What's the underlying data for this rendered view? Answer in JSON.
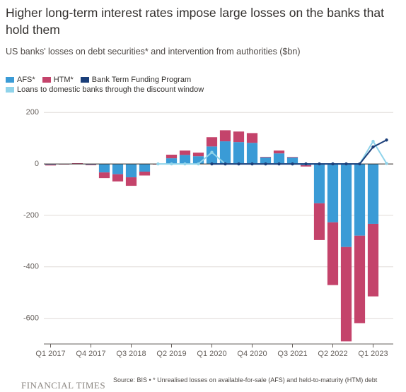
{
  "chart_data": {
    "type": "bar",
    "title": "Higher long-term interest rates impose large losses on the banks that hold them",
    "subtitle": "US banks' losses on debt securities* and intervention from authorities ($bn)",
    "source": "Source: BIS • * Unrealised losses on available-for-sale (AFS) and held-to-maturity (HTM) debt",
    "publisher": "FINANCIAL TIMES",
    "categories": [
      "Q1 2017",
      null,
      null,
      "Q4 2017",
      null,
      null,
      "Q3 2018",
      null,
      null,
      "Q2 2019",
      null,
      null,
      "Q1 2020",
      null,
      null,
      "Q4 2020",
      null,
      null,
      "Q3 2021",
      null,
      null,
      "Q2 2022",
      null,
      null,
      "Q1 2023",
      null
    ],
    "series": [
      {
        "name": "AFS*",
        "color": "#3a9bd6",
        "type": "bar",
        "values": [
          -3,
          0,
          2,
          -3,
          -33,
          -40,
          -52,
          -30,
          0,
          22,
          35,
          30,
          68,
          88,
          85,
          82,
          27,
          41,
          25,
          -5,
          -153,
          -227,
          -323,
          -279,
          -233,
          null
        ]
      },
      {
        "name": "HTM*",
        "color": "#c4436b",
        "type": "bar",
        "values": [
          -3,
          0,
          1,
          -2,
          -22,
          -28,
          -33,
          -15,
          0,
          14,
          17,
          14,
          36,
          43,
          41,
          38,
          0,
          11,
          2,
          -5,
          -143,
          -244,
          -367,
          -340,
          -282,
          null
        ]
      },
      {
        "name": "Bank Term Funding Program",
        "color": "#1b3f7a",
        "type": "line",
        "values": [
          null,
          null,
          null,
          null,
          null,
          null,
          null,
          null,
          null,
          null,
          null,
          null,
          0,
          0,
          0,
          0,
          0,
          0,
          0,
          0,
          0,
          0,
          0,
          0,
          66,
          93
        ]
      },
      {
        "name": "Loans to domestic banks through the discount window",
        "color": "#8fd3ea",
        "type": "line",
        "values": [
          null,
          null,
          null,
          null,
          null,
          null,
          null,
          null,
          0,
          0,
          0,
          0,
          45,
          0,
          0,
          0,
          0,
          0,
          0,
          0,
          0,
          0,
          0,
          0,
          88,
          2
        ]
      }
    ],
    "ylim": [
      -700,
      220
    ],
    "yticks": [
      200,
      0,
      -200,
      -400,
      -600
    ],
    "grid": true
  }
}
